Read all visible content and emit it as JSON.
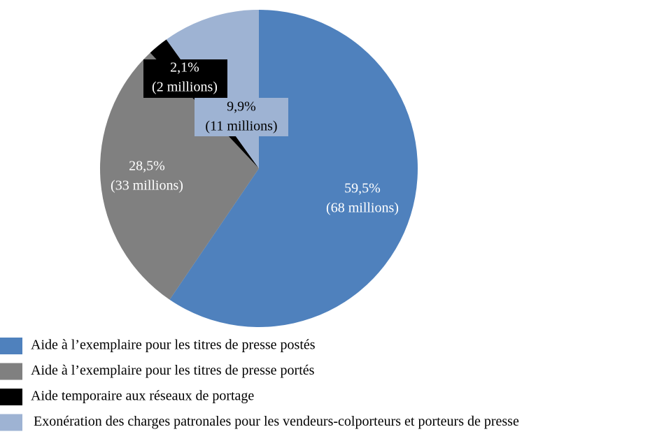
{
  "chart_data": {
    "type": "pie",
    "categories": [
      "Aide à l’exemplaire pour les titres de presse postés",
      "Aide à l’exemplaire pour les titres de presse portés",
      "Aide temporaire aux réseaux de portage",
      "Exonération des charges patronales pour les vendeurs-colporteurs et porteurs de presse"
    ],
    "values": [
      59.5,
      28.5,
      2.1,
      9.9
    ],
    "value_labels": [
      "59,5%",
      "28,5%",
      "2,1%",
      "9,9%"
    ],
    "amount_labels": [
      "(68 millions)",
      "(33 millions)",
      "(2 millions)",
      "(11 millions)"
    ],
    "colors": [
      "#4f81bd",
      "#808080",
      "#000000",
      "#9eb3d3"
    ],
    "legend": "bottom"
  }
}
